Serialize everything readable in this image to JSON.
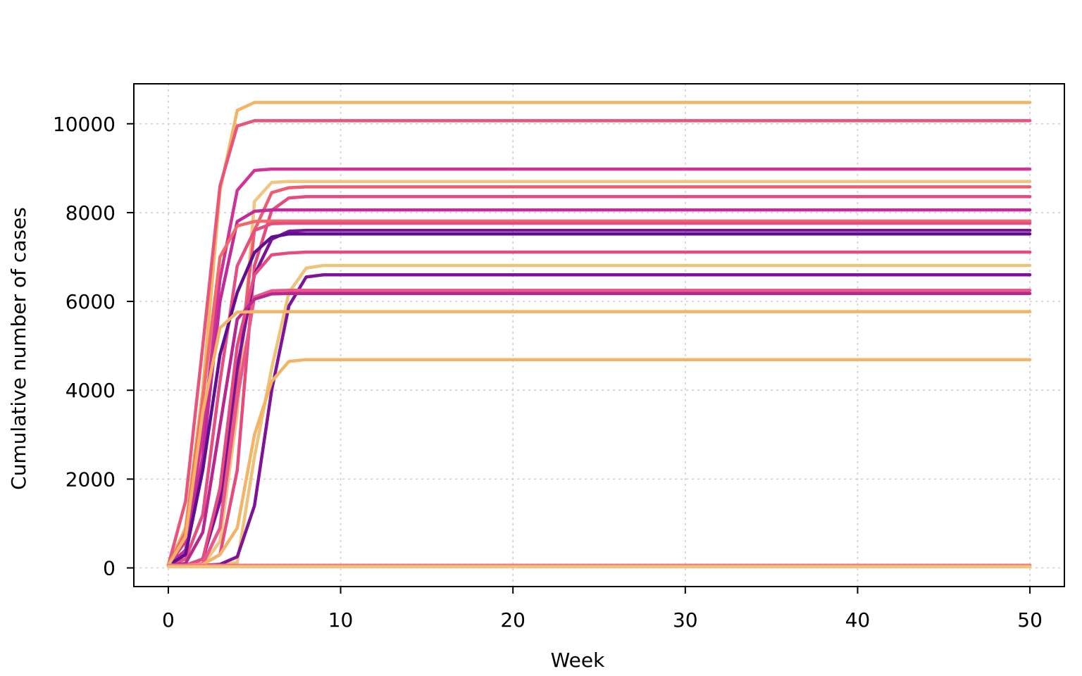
{
  "chart_data": {
    "type": "line",
    "title": "",
    "xlabel": "Week",
    "ylabel": "Cumulative number of cases",
    "xlim": [
      -2,
      52
    ],
    "ylim": [
      -420,
      10900
    ],
    "x_ticks": [
      0,
      10,
      20,
      30,
      40,
      50
    ],
    "y_ticks": [
      0,
      2000,
      4000,
      6000,
      8000,
      10000
    ],
    "x_tick_labels": [
      "0",
      "10",
      "20",
      "30",
      "40",
      "50"
    ],
    "y_tick_labels": [
      "0",
      "2000",
      "4000",
      "6000",
      "8000",
      "10000"
    ],
    "grid": true,
    "legend": "none",
    "x_max": 50,
    "series": [
      {
        "color": "#F2B467",
        "points": [
          [
            0,
            60
          ],
          [
            1,
            900
          ],
          [
            2,
            4000
          ],
          [
            3,
            8500
          ],
          [
            4,
            10300
          ],
          [
            5,
            10480
          ]
        ]
      },
      {
        "color": "#E8557B",
        "points": [
          [
            0,
            60
          ],
          [
            1,
            1500
          ],
          [
            2,
            5000
          ],
          [
            3,
            8600
          ],
          [
            4,
            9950
          ],
          [
            5,
            10070
          ]
        ]
      },
      {
        "color": "#CE3396",
        "points": [
          [
            0,
            60
          ],
          [
            1,
            600
          ],
          [
            2,
            3000
          ],
          [
            3,
            6500
          ],
          [
            4,
            8500
          ],
          [
            5,
            8950
          ],
          [
            6,
            8980
          ]
        ]
      },
      {
        "color": "#EFC57F",
        "points": [
          [
            0,
            60
          ],
          [
            1,
            60
          ],
          [
            2,
            60
          ],
          [
            3,
            600
          ],
          [
            4,
            3500
          ],
          [
            5,
            8250
          ],
          [
            6,
            8680
          ],
          [
            7,
            8700
          ]
        ]
      },
      {
        "color": "#EC5D72",
        "points": [
          [
            0,
            60
          ],
          [
            1,
            60
          ],
          [
            2,
            80
          ],
          [
            3,
            900
          ],
          [
            4,
            4200
          ],
          [
            5,
            7600
          ],
          [
            6,
            8450
          ],
          [
            7,
            8560
          ],
          [
            8,
            8580
          ]
        ]
      },
      {
        "color": "#E44C7C",
        "points": [
          [
            0,
            60
          ],
          [
            1,
            60
          ],
          [
            2,
            80
          ],
          [
            3,
            300
          ],
          [
            4,
            2200
          ],
          [
            5,
            6800
          ],
          [
            6,
            8050
          ],
          [
            7,
            8330
          ],
          [
            8,
            8360
          ]
        ]
      },
      {
        "color": "#C02A99",
        "points": [
          [
            0,
            60
          ],
          [
            1,
            400
          ],
          [
            2,
            2500
          ],
          [
            3,
            6000
          ],
          [
            4,
            7800
          ],
          [
            5,
            8030
          ],
          [
            6,
            8060
          ]
        ]
      },
      {
        "color": "#F06A6B",
        "points": [
          [
            0,
            60
          ],
          [
            1,
            800
          ],
          [
            2,
            3800
          ],
          [
            3,
            7000
          ],
          [
            4,
            7700
          ],
          [
            5,
            7800
          ],
          [
            6,
            7810
          ]
        ]
      },
      {
        "color": "#E34F82",
        "points": [
          [
            0,
            60
          ],
          [
            1,
            200
          ],
          [
            2,
            1200
          ],
          [
            3,
            4200
          ],
          [
            4,
            6800
          ],
          [
            5,
            7600
          ],
          [
            6,
            7750
          ],
          [
            7,
            7760
          ]
        ]
      },
      {
        "color": "#7A1296",
        "points": [
          [
            0,
            60
          ],
          [
            1,
            60
          ],
          [
            2,
            200
          ],
          [
            3,
            1500
          ],
          [
            4,
            4500
          ],
          [
            5,
            6600
          ],
          [
            6,
            7400
          ],
          [
            7,
            7580
          ],
          [
            8,
            7600
          ]
        ]
      },
      {
        "color": "#5E0E8F",
        "points": [
          [
            0,
            60
          ],
          [
            1,
            300
          ],
          [
            2,
            2200
          ],
          [
            3,
            4800
          ],
          [
            4,
            6200
          ],
          [
            5,
            7100
          ],
          [
            6,
            7450
          ],
          [
            7,
            7520
          ]
        ]
      },
      {
        "color": "#E24C80",
        "points": [
          [
            0,
            60
          ],
          [
            1,
            60
          ],
          [
            2,
            200
          ],
          [
            3,
            1800
          ],
          [
            4,
            5000
          ],
          [
            5,
            6600
          ],
          [
            6,
            7050
          ],
          [
            7,
            7090
          ],
          [
            8,
            7110
          ]
        ]
      },
      {
        "color": "#EDC27A",
        "points": [
          [
            0,
            60
          ],
          [
            1,
            60
          ],
          [
            2,
            60
          ],
          [
            3,
            80
          ],
          [
            4,
            120
          ],
          [
            5,
            2500
          ],
          [
            6,
            4500
          ],
          [
            7,
            6200
          ],
          [
            8,
            6750
          ],
          [
            9,
            6810
          ]
        ]
      },
      {
        "color": "#7E1397",
        "points": [
          [
            0,
            60
          ],
          [
            1,
            60
          ],
          [
            2,
            60
          ],
          [
            3,
            80
          ],
          [
            4,
            250
          ],
          [
            5,
            1400
          ],
          [
            6,
            4000
          ],
          [
            7,
            5900
          ],
          [
            8,
            6550
          ],
          [
            9,
            6600
          ]
        ]
      },
      {
        "color": "#E8588A",
        "points": [
          [
            0,
            60
          ],
          [
            1,
            60
          ],
          [
            2,
            100
          ],
          [
            3,
            900
          ],
          [
            4,
            3800
          ],
          [
            5,
            6100
          ],
          [
            6,
            6240
          ],
          [
            7,
            6250
          ]
        ]
      },
      {
        "color": "#B8278F",
        "points": [
          [
            0,
            60
          ],
          [
            1,
            100
          ],
          [
            2,
            800
          ],
          [
            3,
            3200
          ],
          [
            4,
            5600
          ],
          [
            5,
            6050
          ],
          [
            6,
            6170
          ],
          [
            7,
            6180
          ]
        ]
      },
      {
        "color": "#F2B467",
        "points": [
          [
            0,
            60
          ],
          [
            1,
            700
          ],
          [
            2,
            3500
          ],
          [
            3,
            5400
          ],
          [
            4,
            5760
          ],
          [
            5,
            5770
          ]
        ]
      },
      {
        "color": "#F2B467",
        "points": [
          [
            0,
            60
          ],
          [
            1,
            60
          ],
          [
            2,
            80
          ],
          [
            3,
            300
          ],
          [
            4,
            900
          ],
          [
            5,
            3000
          ],
          [
            6,
            4200
          ],
          [
            7,
            4650
          ],
          [
            8,
            4690
          ]
        ]
      },
      {
        "color": "#F07A80",
        "points": [
          [
            0,
            60
          ]
        ]
      },
      {
        "color": "#F3C27D",
        "points": [
          [
            0,
            25
          ]
        ]
      }
    ]
  }
}
